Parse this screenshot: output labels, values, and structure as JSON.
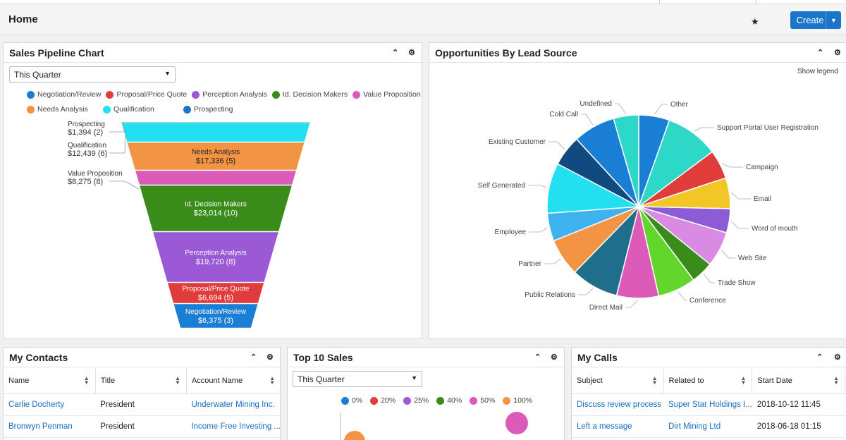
{
  "page": {
    "title": "Home",
    "create_label": "Create"
  },
  "colors": {
    "accent": "#1a74c8",
    "link": "#1a6fc1"
  },
  "pipeline": {
    "title": "Sales Pipeline Chart",
    "filter": "This Quarter",
    "legend": [
      {
        "label": "Negotiation/Review",
        "color": "#1a7fd4"
      },
      {
        "label": "Proposal/Price Quote",
        "color": "#e03c3c"
      },
      {
        "label": "Perception Analysis",
        "color": "#9b59d6"
      },
      {
        "label": "Id. Decision Makers",
        "color": "#3a8c1a"
      },
      {
        "label": "Value Proposition",
        "color": "#dc5bb9"
      },
      {
        "label": "Needs Analysis",
        "color": "#f39445"
      },
      {
        "label": "Qualification",
        "color": "#22e0f0"
      },
      {
        "label": "Prospecting",
        "color": "#1a74c8"
      }
    ]
  },
  "opportunities": {
    "title": "Opportunities By Lead Source",
    "show_legend": "Show legend"
  },
  "chart_data": [
    {
      "type": "funnel",
      "title": "Sales Pipeline Chart",
      "stages": [
        {
          "name": "Prospecting",
          "amount": "$1,394",
          "count": 2,
          "value": 1394,
          "color": "#1a74c8"
        },
        {
          "name": "Qualification",
          "amount": "$12,439",
          "count": 6,
          "value": 12439,
          "color": "#22e0f0"
        },
        {
          "name": "Needs Analysis",
          "amount": "$17,336",
          "count": 5,
          "value": 17336,
          "color": "#f39445"
        },
        {
          "name": "Value Proposition",
          "amount": "$8,275",
          "count": 8,
          "value": 8275,
          "color": "#dc5bb9"
        },
        {
          "name": "Id. Decision Makers",
          "amount": "$23,014",
          "count": 10,
          "value": 23014,
          "color": "#3a8c1a"
        },
        {
          "name": "Perception Analysis",
          "amount": "$19,720",
          "count": 8,
          "value": 19720,
          "color": "#9b59d6"
        },
        {
          "name": "Proposal/Price Quote",
          "amount": "$6,694",
          "count": 5,
          "value": 6694,
          "color": "#e03c3c"
        },
        {
          "name": "Negotiation/Review",
          "amount": "$6,375",
          "count": 3,
          "value": 6375,
          "color": "#1a7fd4"
        }
      ]
    },
    {
      "type": "pie",
      "title": "Opportunities By Lead Source",
      "slices": [
        {
          "label": "Other",
          "value": 5.5,
          "color": "#1a7fd4"
        },
        {
          "label": "Support Portal User Registration",
          "value": 9.5,
          "color": "#2ed8c8"
        },
        {
          "label": "Campaign",
          "value": 5.2,
          "color": "#e03c3c"
        },
        {
          "label": "Email",
          "value": 5.5,
          "color": "#f3c628"
        },
        {
          "label": "Word of mouth",
          "value": 4.3,
          "color": "#8b5cd6"
        },
        {
          "label": "Web Site",
          "value": 6.3,
          "color": "#d98be3"
        },
        {
          "label": "Trade Show",
          "value": 4.0,
          "color": "#3a8c1a"
        },
        {
          "label": "Conference",
          "value": 6.8,
          "color": "#62d62a"
        },
        {
          "label": "Direct Mail",
          "value": 7.5,
          "color": "#dc5bb9"
        },
        {
          "label": "Public Relations",
          "value": 8.5,
          "color": "#1f6e8c"
        },
        {
          "label": "Partner",
          "value": 6.7,
          "color": "#f39445"
        },
        {
          "label": "Employee",
          "value": 5.0,
          "color": "#3fb2f0"
        },
        {
          "label": "Self Generated",
          "value": 9.0,
          "color": "#22e0f0"
        },
        {
          "label": "Existing Customer",
          "value": 5.5,
          "color": "#104a7e"
        },
        {
          "label": "Cold Call",
          "value": 7.5,
          "color": "#1a7fd4"
        },
        {
          "label": "Undefined",
          "value": 4.5,
          "color": "#2ed8c8"
        }
      ]
    },
    {
      "type": "scatter",
      "title": "Top 10 Sales",
      "legend": [
        {
          "label": "0%",
          "color": "#1a7fd4"
        },
        {
          "label": "20%",
          "color": "#e03c3c"
        },
        {
          "label": "25%",
          "color": "#9b59d6"
        },
        {
          "label": "40%",
          "color": "#3a8c1a"
        },
        {
          "label": "50%",
          "color": "#dc5bb9"
        },
        {
          "label": "100%",
          "color": "#f39445"
        }
      ]
    }
  ],
  "contacts": {
    "title": "My Contacts",
    "columns": [
      "Name",
      "Title",
      "Account Name"
    ],
    "rows": [
      [
        "Carlie Docherty",
        "President",
        "Underwater Mining Inc."
      ],
      [
        "Bronwyn Penman",
        "President",
        "Income Free Investing ..."
      ]
    ]
  },
  "top_sales": {
    "title": "Top 10 Sales",
    "filter": "This Quarter"
  },
  "calls": {
    "title": "My Calls",
    "columns": [
      "Subject",
      "Related to",
      "Start Date"
    ],
    "rows": [
      [
        "Discuss review process",
        "Super Star Holdings I...",
        "2018-10-12 11:45"
      ],
      [
        "Left a message",
        "Dirt Mining Ltd",
        "2018-06-18 01:15"
      ]
    ]
  }
}
